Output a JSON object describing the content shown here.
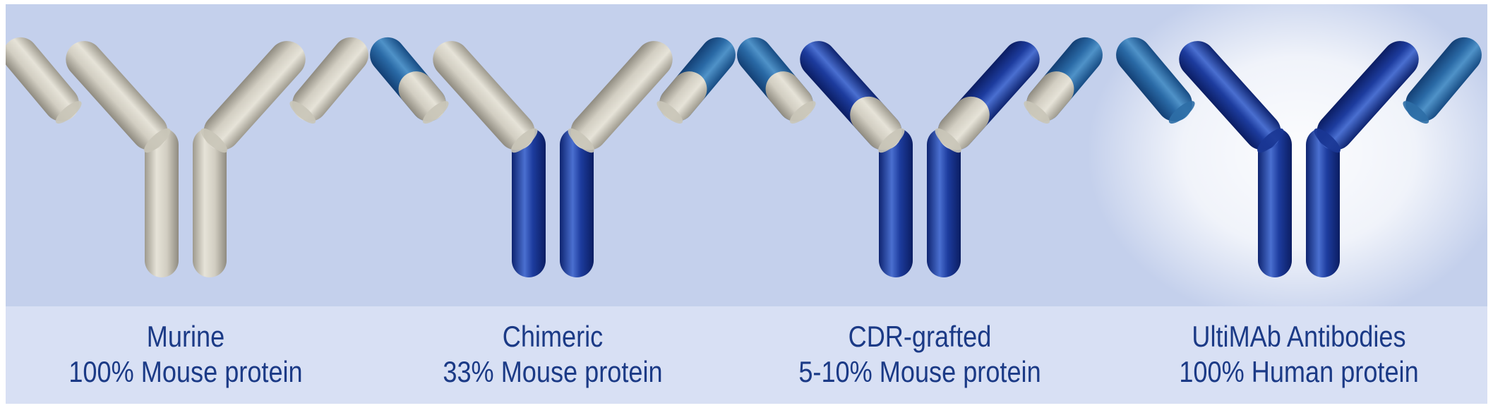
{
  "colors": {
    "background": "#c4d0ec",
    "caption_band": "#d8e0f4",
    "text": "#1b3a86",
    "mouse_protein": "#c2beb1",
    "human_constant": "#14308e",
    "human_variable": "#2a6aa6",
    "glow": "#ffffff"
  },
  "antibodies": [
    {
      "name": "Murine",
      "composition": "100% Mouse protein",
      "stem_color": "mouse",
      "inner_arm": "mouse",
      "outer_arm": "mouse",
      "inner_tip": "mouse",
      "outer_tip": "mouse",
      "glow": false
    },
    {
      "name": "Chimeric",
      "composition": "33% Mouse protein",
      "stem_color": "human",
      "inner_arm": "mouse",
      "outer_arm": "variable",
      "inner_tip": "mouse",
      "outer_tip": "mouse",
      "glow": false
    },
    {
      "name": "CDR-grafted",
      "composition": "5-10% Mouse protein",
      "stem_color": "human",
      "inner_arm": "human",
      "outer_arm": "variable",
      "inner_tip": "mouse",
      "outer_tip": "mouse",
      "glow": false
    },
    {
      "name": "UltiMAb Antibodies",
      "composition": "100% Human protein",
      "stem_color": "human",
      "inner_arm": "human",
      "outer_arm": "variable",
      "inner_tip": "human",
      "outer_tip": "variable",
      "glow": true
    }
  ]
}
